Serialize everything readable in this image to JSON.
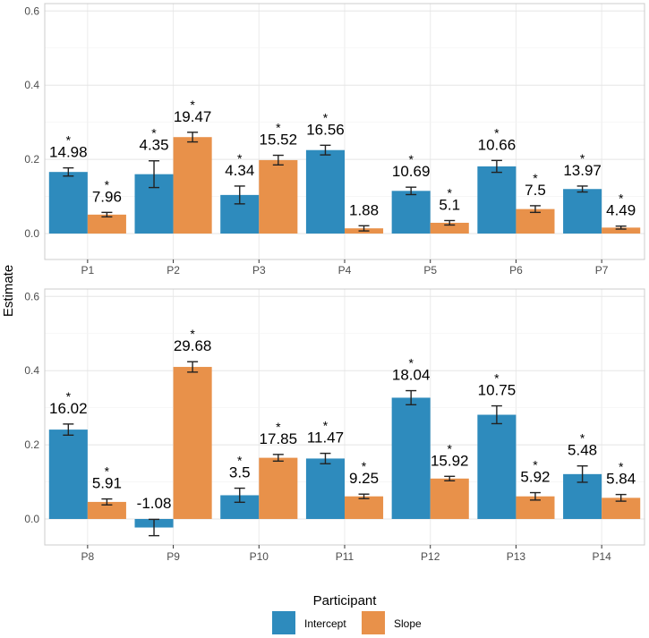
{
  "chart_data": {
    "type": "bar",
    "xlabel": "Participant",
    "ylabel": "Estimate",
    "ylim": [
      -0.07,
      0.62
    ],
    "yticks": [
      0.0,
      0.2,
      0.4,
      0.6
    ],
    "ytick_labels": [
      "0.0",
      "0.2",
      "0.4",
      "0.6"
    ],
    "significance_marker": "*",
    "legend": {
      "position": "bottom",
      "entries": [
        {
          "name": "Intercept",
          "color": "#2e8bbd"
        },
        {
          "name": "Slope",
          "color": "#e8914a"
        }
      ]
    },
    "panels": [
      {
        "categories": [
          "P1",
          "P2",
          "P3",
          "P4",
          "P5",
          "P6",
          "P7"
        ],
        "series": [
          {
            "name": "Intercept",
            "values": [
              0.166,
              0.16,
              0.104,
              0.225,
              0.115,
              0.181,
              0.12
            ],
            "errors": [
              0.011,
              0.036,
              0.024,
              0.013,
              0.01,
              0.016,
              0.008
            ],
            "labels": [
              "14.98",
              "4.35",
              "4.34",
              "16.56",
              "10.69",
              "10.66",
              "13.97"
            ],
            "significant": [
              true,
              true,
              true,
              true,
              true,
              true,
              true
            ]
          },
          {
            "name": "Slope",
            "values": [
              0.051,
              0.26,
              0.198,
              0.014,
              0.029,
              0.066,
              0.016
            ],
            "errors": [
              0.006,
              0.013,
              0.013,
              0.007,
              0.006,
              0.009,
              0.004
            ],
            "labels": [
              "7.96",
              "19.47",
              "15.52",
              "1.88",
              "5.1",
              "7.5",
              "4.49"
            ],
            "significant": [
              true,
              true,
              true,
              false,
              true,
              true,
              true
            ]
          }
        ]
      },
      {
        "categories": [
          "P8",
          "P9",
          "P10",
          "P11",
          "P12",
          "P13",
          "P14"
        ],
        "series": [
          {
            "name": "Intercept",
            "values": [
              0.241,
              -0.023,
              0.064,
              0.163,
              0.327,
              0.281,
              0.121
            ],
            "errors": [
              0.015,
              0.022,
              0.019,
              0.014,
              0.019,
              0.024,
              0.022
            ],
            "labels": [
              "16.02",
              "-1.08",
              "3.5",
              "11.47",
              "18.04",
              "10.75",
              "5.48"
            ],
            "significant": [
              true,
              false,
              true,
              true,
              true,
              true,
              true
            ]
          },
          {
            "name": "Slope",
            "values": [
              0.046,
              0.41,
              0.165,
              0.061,
              0.109,
              0.061,
              0.057
            ],
            "errors": [
              0.008,
              0.014,
              0.009,
              0.006,
              0.006,
              0.01,
              0.009
            ],
            "labels": [
              "5.91",
              "29.68",
              "17.85",
              "9.25",
              "15.92",
              "5.92",
              "5.84"
            ],
            "significant": [
              true,
              true,
              true,
              true,
              true,
              true,
              true
            ]
          }
        ]
      }
    ]
  }
}
